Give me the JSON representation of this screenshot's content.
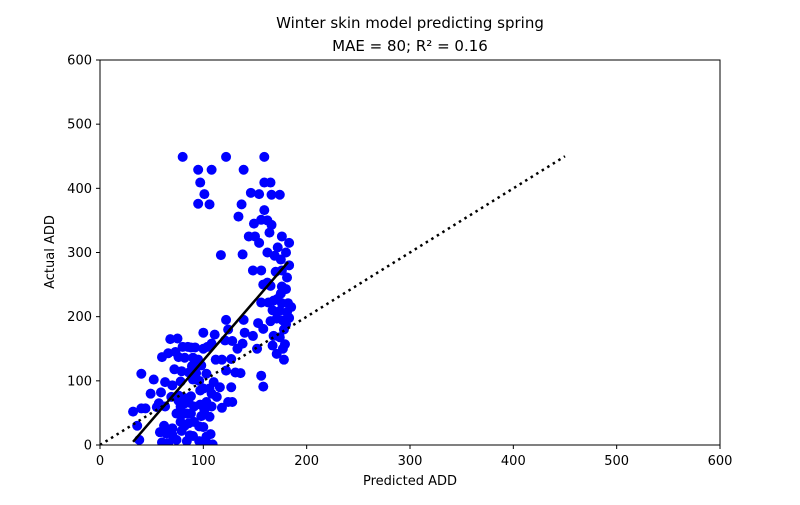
{
  "chart_data": {
    "type": "scatter",
    "title": "Winter skin model predicting spring",
    "subtitle": "MAE = 80; R² = 0.16",
    "xlabel": "Predicted ADD",
    "ylabel": "Actual ADD",
    "xlim": [
      0,
      600
    ],
    "ylim": [
      0,
      600
    ],
    "xticks": [
      "0",
      "100",
      "200",
      "300",
      "400",
      "500",
      "600"
    ],
    "yticks": [
      "0",
      "100",
      "200",
      "300",
      "400",
      "500",
      "600"
    ],
    "grid": false,
    "legend": "none",
    "colors": {
      "points": "#0000ff",
      "fit_line": "#000000",
      "reference_line": "#000000"
    },
    "reference_line": {
      "x": [
        0,
        450
      ],
      "y": [
        0,
        450
      ],
      "style": "dotted"
    },
    "fit_line": {
      "x": [
        32,
        182
      ],
      "y": [
        5,
        285
      ],
      "style": "solid"
    },
    "points": [
      [
        80,
        449
      ],
      [
        122,
        449
      ],
      [
        159,
        449
      ],
      [
        95,
        429
      ],
      [
        108,
        429
      ],
      [
        139,
        429
      ],
      [
        97,
        409
      ],
      [
        159,
        409
      ],
      [
        165,
        409
      ],
      [
        101,
        391
      ],
      [
        146,
        393
      ],
      [
        154,
        391
      ],
      [
        166,
        390
      ],
      [
        174,
        390
      ],
      [
        95,
        376
      ],
      [
        106,
        375
      ],
      [
        137,
        375
      ],
      [
        159,
        366
      ],
      [
        134,
        356
      ],
      [
        156,
        351
      ],
      [
        162,
        350
      ],
      [
        149,
        345
      ],
      [
        166,
        343
      ],
      [
        144,
        325
      ],
      [
        150,
        325
      ],
      [
        154,
        315
      ],
      [
        164,
        331
      ],
      [
        176,
        325
      ],
      [
        183,
        315
      ],
      [
        172,
        308
      ],
      [
        162,
        300
      ],
      [
        117,
        296
      ],
      [
        138,
        297
      ],
      [
        169,
        295
      ],
      [
        175,
        289
      ],
      [
        180,
        300
      ],
      [
        183,
        280
      ],
      [
        148,
        272
      ],
      [
        156,
        272
      ],
      [
        170,
        270
      ],
      [
        176,
        272
      ],
      [
        181,
        261
      ],
      [
        158,
        250
      ],
      [
        162,
        253
      ],
      [
        165,
        248
      ],
      [
        176,
        247
      ],
      [
        180,
        243
      ],
      [
        175,
        236
      ],
      [
        156,
        222
      ],
      [
        163,
        222
      ],
      [
        168,
        225
      ],
      [
        172,
        228
      ],
      [
        176,
        221
      ],
      [
        182,
        221
      ],
      [
        185,
        215
      ],
      [
        167,
        210
      ],
      [
        174,
        209
      ],
      [
        181,
        207
      ],
      [
        183,
        198
      ],
      [
        165,
        193
      ],
      [
        171,
        197
      ],
      [
        177,
        194
      ],
      [
        122,
        195
      ],
      [
        124,
        180
      ],
      [
        139,
        195
      ],
      [
        153,
        190
      ],
      [
        158,
        181
      ],
      [
        178,
        180
      ],
      [
        180,
        188
      ],
      [
        168,
        170
      ],
      [
        174,
        168
      ],
      [
        179,
        157
      ],
      [
        167,
        155
      ],
      [
        177,
        150
      ],
      [
        171,
        142
      ],
      [
        178,
        133
      ],
      [
        68,
        165
      ],
      [
        75,
        166
      ],
      [
        80,
        153
      ],
      [
        85,
        153
      ],
      [
        88,
        152
      ],
      [
        92,
        152
      ],
      [
        100,
        175
      ],
      [
        111,
        172
      ],
      [
        121,
        163
      ],
      [
        66,
        143
      ],
      [
        73,
        145
      ],
      [
        76,
        137
      ],
      [
        82,
        136
      ],
      [
        90,
        136
      ],
      [
        95,
        133
      ],
      [
        100,
        150
      ],
      [
        104,
        153
      ],
      [
        108,
        158
      ],
      [
        128,
        162
      ],
      [
        60,
        137
      ],
      [
        89,
        123
      ],
      [
        98,
        124
      ],
      [
        112,
        133
      ],
      [
        118,
        133
      ],
      [
        127,
        134
      ],
      [
        133,
        150
      ],
      [
        138,
        158
      ],
      [
        140,
        175
      ],
      [
        148,
        170
      ],
      [
        72,
        118
      ],
      [
        79,
        115
      ],
      [
        86,
        113
      ],
      [
        93,
        112
      ],
      [
        103,
        111
      ],
      [
        122,
        116
      ],
      [
        131,
        113
      ],
      [
        136,
        112
      ],
      [
        152,
        150
      ],
      [
        156,
        108
      ],
      [
        40,
        111
      ],
      [
        52,
        102
      ],
      [
        63,
        98
      ],
      [
        70,
        93
      ],
      [
        78,
        99
      ],
      [
        90,
        102
      ],
      [
        96,
        100
      ],
      [
        100,
        88
      ],
      [
        106,
        88
      ],
      [
        116,
        90
      ],
      [
        127,
        90
      ],
      [
        158,
        91
      ],
      [
        49,
        80
      ],
      [
        59,
        82
      ],
      [
        69,
        75
      ],
      [
        76,
        77
      ],
      [
        82,
        73
      ],
      [
        88,
        76
      ],
      [
        97,
        85
      ],
      [
        108,
        80
      ],
      [
        110,
        98
      ],
      [
        113,
        75
      ],
      [
        57,
        65
      ],
      [
        63,
        60
      ],
      [
        76,
        69
      ],
      [
        78,
        60
      ],
      [
        81,
        64
      ],
      [
        86,
        66
      ],
      [
        91,
        60
      ],
      [
        97,
        63
      ],
      [
        103,
        67
      ],
      [
        108,
        60
      ],
      [
        124,
        67
      ],
      [
        128,
        67
      ],
      [
        40,
        57
      ],
      [
        44,
        57
      ],
      [
        55,
        59
      ],
      [
        74,
        49
      ],
      [
        79,
        47
      ],
      [
        84,
        49
      ],
      [
        88,
        49
      ],
      [
        98,
        45
      ],
      [
        101,
        55
      ],
      [
        106,
        44
      ],
      [
        118,
        58
      ],
      [
        32,
        52
      ],
      [
        36,
        30
      ],
      [
        62,
        30
      ],
      [
        66,
        20
      ],
      [
        70,
        26
      ],
      [
        78,
        36
      ],
      [
        82,
        30
      ],
      [
        86,
        34
      ],
      [
        91,
        36
      ],
      [
        96,
        29
      ],
      [
        100,
        28
      ],
      [
        58,
        20
      ],
      [
        64,
        18
      ],
      [
        70,
        16
      ],
      [
        79,
        22
      ],
      [
        87,
        15
      ],
      [
        90,
        14
      ],
      [
        103,
        13
      ],
      [
        107,
        17
      ],
      [
        38,
        8
      ],
      [
        60,
        4
      ],
      [
        66,
        3
      ],
      [
        74,
        8
      ],
      [
        84,
        6
      ],
      [
        96,
        6
      ],
      [
        103,
        3
      ],
      [
        109,
        1
      ]
    ]
  }
}
